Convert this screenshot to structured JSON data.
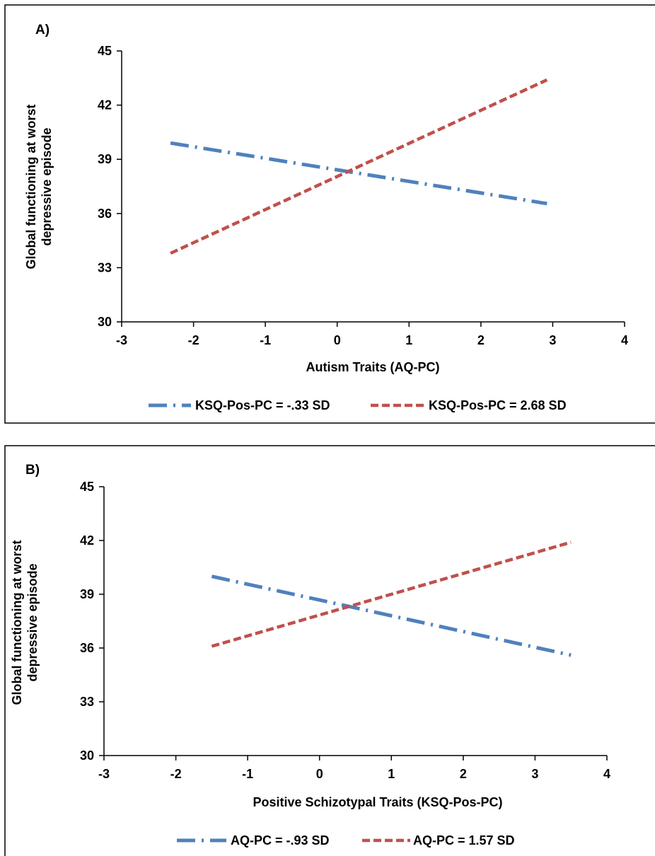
{
  "chart_data": [
    {
      "type": "line",
      "panel_label": "A)",
      "xlabel": "Autism Traits (AQ-PC)",
      "ylabel": [
        "Global functioning at worst",
        "depressive episode"
      ],
      "xlim": [
        -3,
        4
      ],
      "ylim": [
        30,
        45
      ],
      "xticks": [
        -3,
        -2,
        -1,
        0,
        1,
        2,
        3,
        4
      ],
      "yticks": [
        30,
        33,
        36,
        39,
        42,
        45
      ],
      "xtick_labels": [
        "-3",
        "-2",
        "-1",
        "0",
        "1",
        "2",
        "3",
        "4"
      ],
      "ytick_labels": [
        "30",
        "33",
        "36",
        "39",
        "42",
        "45"
      ],
      "grid": false,
      "legend_position": "bottom",
      "series": [
        {
          "name": "KSQ-Pos-PC = -.33 SD",
          "color": "#4f81bd",
          "style": "dash-dot",
          "x": [
            -2.32,
            2.92
          ],
          "y": [
            39.9,
            36.55
          ]
        },
        {
          "name": "KSQ-Pos-PC = 2.68 SD",
          "color": "#c0504d",
          "style": "dash",
          "x": [
            -2.32,
            2.92
          ],
          "y": [
            33.8,
            43.4
          ]
        }
      ]
    },
    {
      "type": "line",
      "panel_label": "B)",
      "xlabel": "Positive Schizotypal Traits (KSQ-Pos-PC)",
      "ylabel": [
        "Global functioning at worst",
        "depressive episode"
      ],
      "xlim": [
        -3,
        4
      ],
      "ylim": [
        30,
        45
      ],
      "xticks": [
        -3,
        -2,
        -1,
        0,
        1,
        2,
        3,
        4
      ],
      "yticks": [
        30,
        33,
        36,
        39,
        42,
        45
      ],
      "xtick_labels": [
        "-3",
        "-2",
        "-1",
        "0",
        "1",
        "2",
        "3",
        "4"
      ],
      "ytick_labels": [
        "30",
        "33",
        "36",
        "39",
        "42",
        "45"
      ],
      "grid": false,
      "legend_position": "bottom",
      "series": [
        {
          "name": "AQ-PC = -.93 SD",
          "color": "#4f81bd",
          "style": "dash-dot",
          "x": [
            -1.5,
            3.5
          ],
          "y": [
            40.0,
            35.6
          ]
        },
        {
          "name": "AQ-PC = 1.57 SD",
          "color": "#c0504d",
          "style": "dash",
          "x": [
            -1.5,
            3.5
          ],
          "y": [
            36.1,
            41.9
          ]
        }
      ]
    }
  ]
}
